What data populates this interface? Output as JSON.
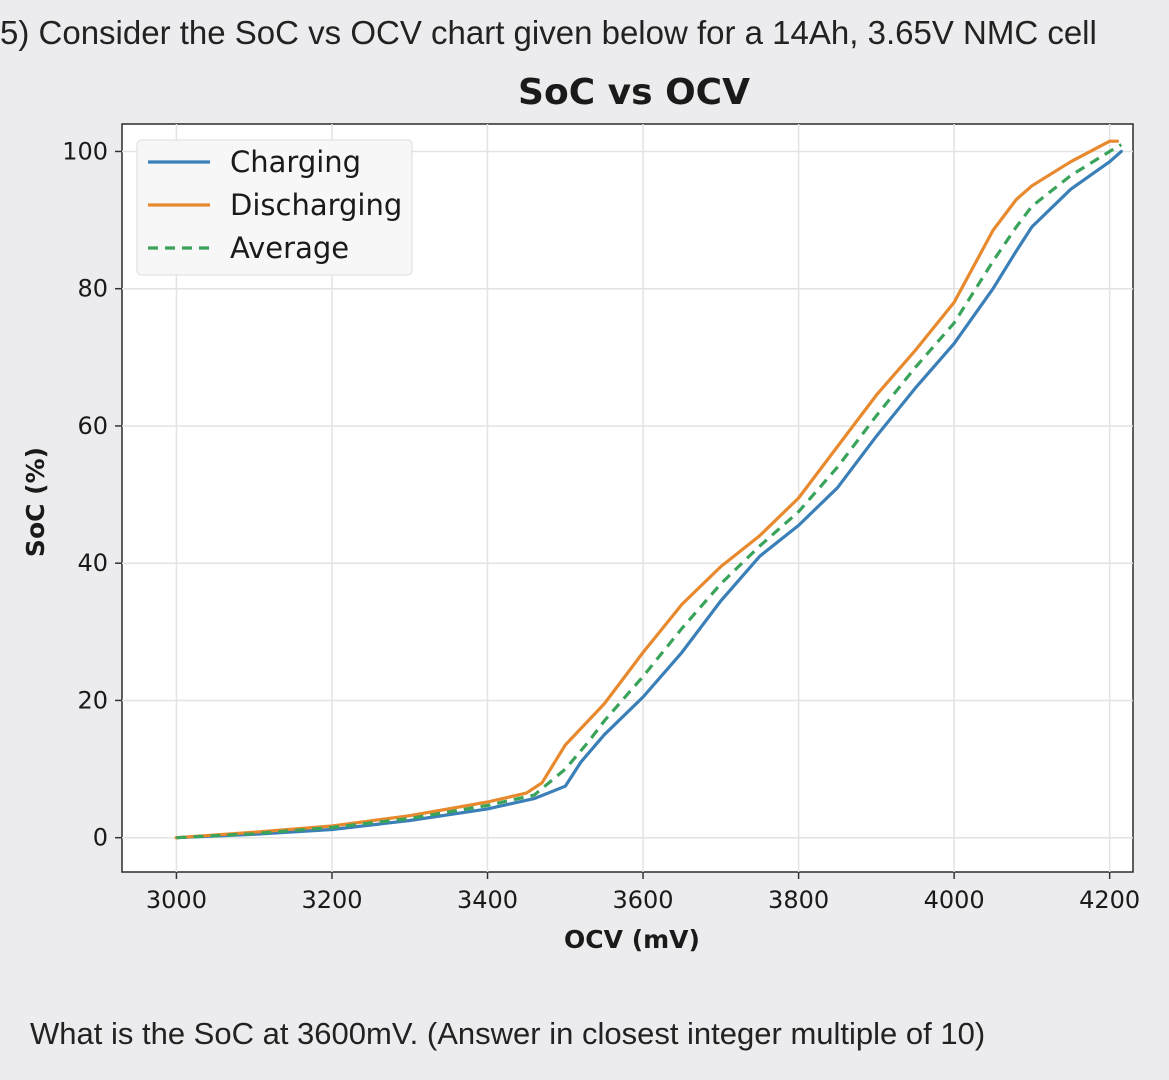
{
  "question": {
    "text": "5) Consider the SoC vs OCV chart given below for a 14Ah, 3.65V NMC cell",
    "prompt": "What is the SoC at 3600mV. (Answer in closest integer multiple of 10)"
  },
  "chart_data": {
    "type": "line",
    "title": "SoC vs OCV",
    "xlabel": "OCV (mV)",
    "ylabel": "SoC (%)",
    "xlim": [
      2930,
      4230
    ],
    "ylim": [
      -5,
      104
    ],
    "xticks": [
      3000,
      3200,
      3400,
      3600,
      3800,
      4000,
      4200
    ],
    "yticks": [
      0,
      20,
      40,
      60,
      80,
      100
    ],
    "grid": true,
    "legend_position": "upper left",
    "series": [
      {
        "name": "Charging",
        "color": "#3a7fb8",
        "style": "solid",
        "x": [
          3000,
          3100,
          3200,
          3300,
          3400,
          3460,
          3500,
          3520,
          3550,
          3600,
          3650,
          3700,
          3750,
          3800,
          3850,
          3900,
          3950,
          4000,
          4050,
          4080,
          4100,
          4150,
          4200,
          4215
        ],
        "y": [
          0,
          0.5,
          1.2,
          2.5,
          4.2,
          5.7,
          7.5,
          11,
          15,
          20.5,
          27,
          34.5,
          41,
          45.5,
          51,
          58.5,
          65.5,
          72,
          80,
          85.5,
          89,
          94.5,
          98.5,
          100
        ]
      },
      {
        "name": "Discharging",
        "color": "#e8892e",
        "style": "solid",
        "x": [
          3000,
          3100,
          3200,
          3300,
          3400,
          3450,
          3470,
          3500,
          3550,
          3600,
          3650,
          3700,
          3750,
          3800,
          3850,
          3900,
          3950,
          4000,
          4050,
          4080,
          4100,
          4150,
          4200,
          4210
        ],
        "y": [
          0,
          0.8,
          1.7,
          3.2,
          5.2,
          6.5,
          8,
          13.5,
          19.5,
          27,
          34,
          39.5,
          44,
          49.5,
          57,
          64.5,
          71,
          78,
          88.5,
          93,
          95,
          98.5,
          101.5,
          101.5
        ]
      },
      {
        "name": "Average",
        "color": "#3aa35a",
        "style": "dashed",
        "x": [
          3000,
          3100,
          3200,
          3300,
          3400,
          3460,
          3500,
          3530,
          3550,
          3600,
          3650,
          3700,
          3750,
          3800,
          3850,
          3900,
          3950,
          4000,
          4050,
          4080,
          4100,
          4150,
          4200,
          4215
        ],
        "y": [
          0,
          0.6,
          1.5,
          2.8,
          4.7,
          6.2,
          10,
          14,
          17,
          23.5,
          30.5,
          37,
          42.5,
          47.5,
          54,
          61.5,
          68.5,
          75,
          84,
          89,
          92,
          96.5,
          100,
          101
        ]
      }
    ]
  }
}
